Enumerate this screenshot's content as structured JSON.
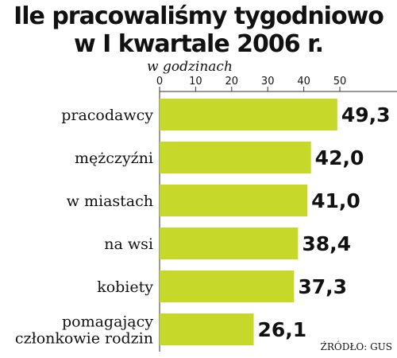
{
  "title_line1": "Ile pracowaliśmy tygodniowo",
  "title_line2": "w I kwartale 2006 r.",
  "unit": "w godzinach",
  "source": "ŹRÓDŁO: GUS",
  "colors": {
    "bar": "#c6d92b",
    "axis": "#333333",
    "text": "#111111"
  },
  "chart_data": {
    "type": "bar",
    "orientation": "horizontal",
    "title": "Ile pracowaliśmy tygodniowo w I kwartale 2006 r.",
    "xlabel": "w godzinach",
    "xlim": [
      0,
      50
    ],
    "ticks": [
      0,
      10,
      20,
      30,
      40,
      50
    ],
    "categories": [
      [
        "pracodawcy"
      ],
      [
        "mężczyźni"
      ],
      [
        "w miastach"
      ],
      [
        "na wsi"
      ],
      [
        "kobiety"
      ],
      [
        "pomagający",
        "członkowie rodzin"
      ]
    ],
    "values": [
      49.3,
      42.0,
      41.0,
      38.4,
      37.3,
      26.1
    ],
    "value_labels": [
      "49,3",
      "42,0",
      "41,0",
      "38,4",
      "37,3",
      "26,1"
    ],
    "grid": false
  }
}
